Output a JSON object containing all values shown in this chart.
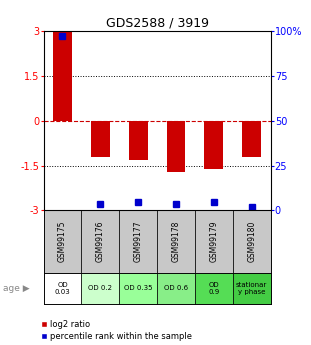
{
  "title": "GDS2588 / 3919",
  "samples": [
    "GSM99175",
    "GSM99176",
    "GSM99177",
    "GSM99178",
    "GSM99179",
    "GSM99180"
  ],
  "log2_ratio": [
    3.0,
    -1.2,
    -1.3,
    -1.7,
    -1.6,
    -1.2
  ],
  "percentile_rank_y": [
    2.82,
    -2.78,
    -2.72,
    -2.78,
    -2.72,
    -2.88
  ],
  "age_labels": [
    "OD\n0.03",
    "OD 0.2",
    "OD 0.35",
    "OD 0.6",
    "OD\n0.9",
    "stationar\ny phase"
  ],
  "age_colors": [
    "#ffffff",
    "#ccffcc",
    "#99ff99",
    "#88ee88",
    "#55dd55",
    "#44cc44"
  ],
  "ylim": [
    -3,
    3
  ],
  "yticks": [
    -3,
    -1.5,
    0,
    1.5,
    3
  ],
  "ytick_labels_left": [
    "-3",
    "-1.5",
    "0",
    "1.5",
    "3"
  ],
  "ytick_labels_right": [
    "0",
    "25",
    "50",
    "75",
    "100%"
  ],
  "bar_color": "#cc0000",
  "dot_color": "#0000cc",
  "hline_color": "#cc0000",
  "bg_color": "#ffffff",
  "sample_bg_color": "#c8c8c8",
  "legend_red_label": "log2 ratio",
  "legend_blue_label": "percentile rank within the sample"
}
